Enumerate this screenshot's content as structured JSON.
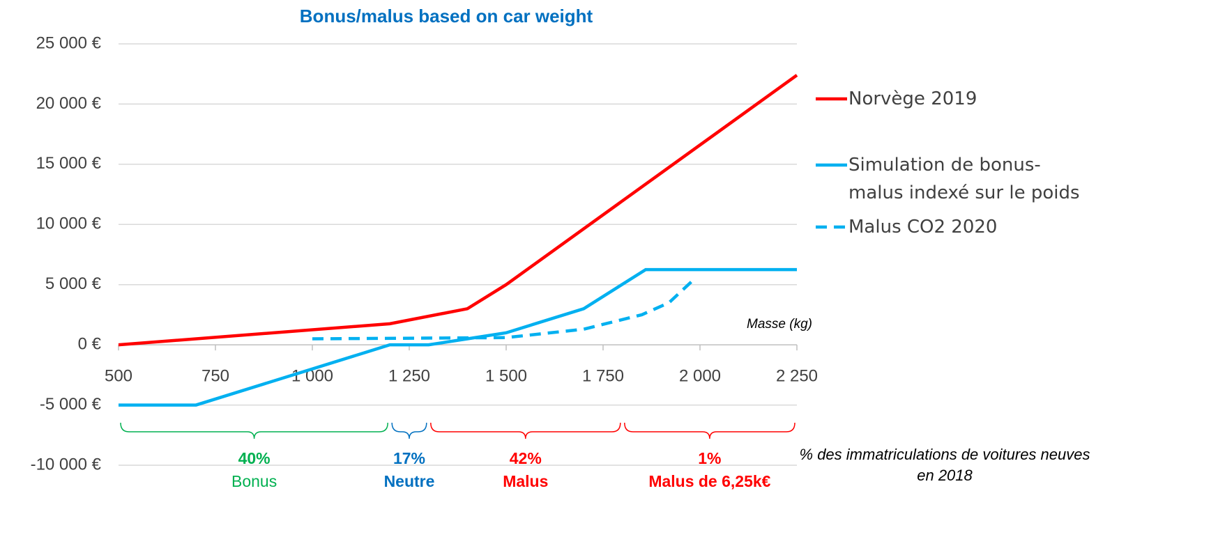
{
  "chart_data": {
    "type": "line",
    "title": "Bonus/malus based on car weight",
    "x_label": "Masse (kg)",
    "note": "% des immatriculations de voitures neuves en 2018",
    "xlim": [
      500,
      2250
    ],
    "xticks": [
      500,
      750,
      {
        "value": 1000,
        "label": "1 000"
      },
      {
        "value": 1250,
        "label": "1 250"
      },
      {
        "value": 1500,
        "label": "1 500"
      },
      {
        "value": 1750,
        "label": "1 750"
      },
      {
        "value": 2000,
        "label": "2 000"
      },
      {
        "value": 2250,
        "label": "2 250"
      }
    ],
    "ylim": [
      -10000,
      25000
    ],
    "yticks": [
      {
        "value": -10000,
        "label": "-10 000 €"
      },
      {
        "value": -5000,
        "label": "-5 000 €"
      },
      {
        "value": 0,
        "label": "0 €"
      },
      {
        "value": 5000,
        "label": "5 000 €"
      },
      {
        "value": 10000,
        "label": "10 000 €"
      },
      {
        "value": 15000,
        "label": "15 000 €"
      },
      {
        "value": 20000,
        "label": "20 000 €"
      },
      {
        "value": 25000,
        "label": "25 000 €"
      }
    ],
    "grid": true,
    "legend": "right",
    "series": [
      {
        "name": "Norvège 2019",
        "color": "#ff0000",
        "dash": false,
        "x": [
          500,
          1200,
          1400,
          1500,
          2250
        ],
        "values": [
          0,
          1750,
          3000,
          5000,
          22400
        ]
      },
      {
        "name": "Simulation de bonus-malus indexé sur le poids",
        "color": "#00b0f0",
        "dash": false,
        "x": [
          500,
          700,
          1200,
          1300,
          1400,
          1500,
          1700,
          1860,
          2250
        ],
        "values": [
          -5000,
          -5000,
          0,
          0,
          500,
          1000,
          3000,
          6250,
          6250
        ]
      },
      {
        "name": "Malus CO2 2020",
        "color": "#00b0f0",
        "dash": true,
        "x": [
          1000,
          1500,
          1700,
          1850,
          1920,
          1980
        ],
        "values": [
          500,
          600,
          1300,
          2500,
          3500,
          5300
        ]
      }
    ],
    "groups": [
      {
        "range": [
          500,
          1200
        ],
        "value": 40,
        "value_label": "40%",
        "label": "Bonus",
        "color": "#00b050",
        "bold": false
      },
      {
        "range": [
          1200,
          1300
        ],
        "value": 17,
        "value_label": "17%",
        "label": "Neutre",
        "color": "#0070c0",
        "bold": true
      },
      {
        "range": [
          1300,
          1800
        ],
        "value": 42,
        "value_label": "42%",
        "label": "Malus",
        "color": "#ff0000",
        "bold": true
      },
      {
        "range": [
          1800,
          2250
        ],
        "value": 1,
        "value_label": "1%",
        "label": "Malus de 6,25k€",
        "color": "#ff0000",
        "bold": true
      }
    ]
  }
}
